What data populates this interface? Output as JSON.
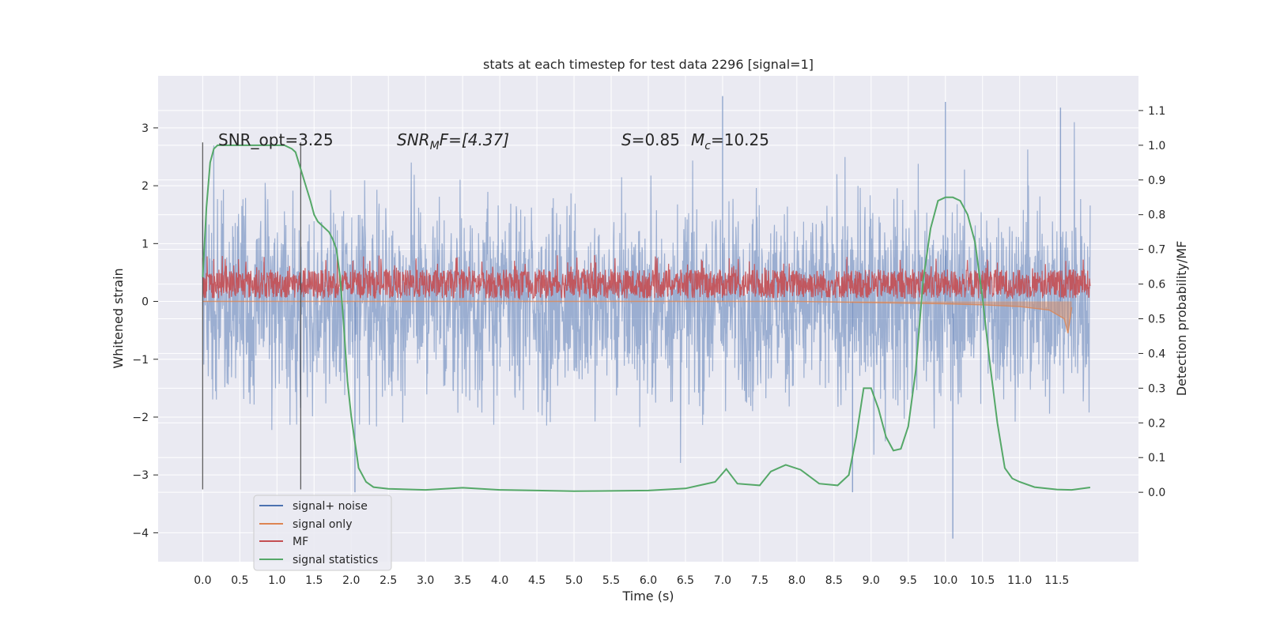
{
  "chart_data": {
    "type": "line",
    "title": "stats at each timestep for test data 2296 [signal=1]",
    "xlabel": "Time (s)",
    "ylabel": "Whitened strain",
    "y2label": "Detection probability/MF",
    "xlim": [
      -0.6,
      12.6
    ],
    "ylim": [
      -4.5,
      3.9
    ],
    "y2lim": [
      -0.2,
      1.2
    ],
    "xticks": [
      0.0,
      0.5,
      1.0,
      1.5,
      2.0,
      2.5,
      3.0,
      3.5,
      4.0,
      4.5,
      5.0,
      5.5,
      6.0,
      6.5,
      7.0,
      7.5,
      8.0,
      8.5,
      9.0,
      9.5,
      10.0,
      10.5,
      11.0,
      11.5
    ],
    "xtick_labels": [
      "0.0",
      "0.5",
      "1.0",
      "1.5",
      "2.0",
      "2.5",
      "3.0",
      "3.5",
      "4.0",
      "4.5",
      "5.0",
      "5.5",
      "6.0",
      "6.5",
      "7.0",
      "7.5",
      "8.0",
      "8.5",
      "9.0",
      "9.5",
      "10.0",
      "10.5",
      "11.0",
      "11.5"
    ],
    "yticks": [
      -4,
      -3,
      -2,
      -1,
      0,
      1,
      2,
      3
    ],
    "ytick_labels": [
      "−4",
      "−3",
      "−2",
      "−1",
      "0",
      "1",
      "2",
      "3"
    ],
    "y2ticks": [
      0.0,
      0.1,
      0.2,
      0.3,
      0.4,
      0.5,
      0.6,
      0.7,
      0.8,
      0.9,
      1.0,
      1.1
    ],
    "y2tick_labels": [
      "0.0",
      "0.1",
      "0.2",
      "0.3",
      "0.4",
      "0.5",
      "0.6",
      "0.7",
      "0.8",
      "0.9",
      "1.0",
      "1.1"
    ],
    "grid": true,
    "legend_placement": "lower-left",
    "vlines": [
      0.0,
      1.32
    ],
    "annotations": {
      "snr_opt": "SNR_opt=3.25",
      "snr_mf_name": "SNR",
      "snr_mf_sub": "M",
      "snr_mf_value": "F=[4.37]",
      "s_name": "S",
      "s_value": "=0.85",
      "mc_name": "M",
      "mc_sub": "c",
      "mc_value": "=10.25"
    },
    "series": [
      {
        "name": "signal+ noise",
        "color": "#4c72b0",
        "axis": "left",
        "description_kind": "noise band",
        "envelope_typical": [
          -1.6,
          1.6
        ],
        "extreme_spikes": [
          [
            10.1,
            -4.1
          ],
          [
            7.0,
            3.55
          ],
          [
            11.55,
            3.35
          ],
          [
            10.0,
            3.45
          ],
          [
            8.75,
            -3.3
          ],
          [
            2.05,
            -3.3
          ]
        ]
      },
      {
        "name": "signal only",
        "color": "#dd8452",
        "axis": "left",
        "x": [
          0.0,
          8.0,
          9.0,
          10.0,
          10.5,
          11.0,
          11.4,
          11.6,
          11.65,
          11.7
        ],
        "y": [
          0.0,
          0.0,
          -0.02,
          -0.04,
          -0.06,
          -0.09,
          -0.15,
          -0.3,
          -0.55,
          -0.1
        ]
      },
      {
        "name": "MF",
        "color": "#c44e52",
        "axis": "left",
        "description_kind": "band",
        "band": [
          0.05,
          0.55
        ],
        "peak": 0.8
      },
      {
        "name": "signal statistics",
        "color": "#55a868",
        "axis": "right",
        "x": [
          0.0,
          0.05,
          0.1,
          0.15,
          0.2,
          0.3,
          0.5,
          0.8,
          1.0,
          1.1,
          1.2,
          1.25,
          1.35,
          1.45,
          1.5,
          1.55,
          1.6,
          1.7,
          1.75,
          1.8,
          1.85,
          1.9,
          1.95,
          2.0,
          2.1,
          2.2,
          2.3,
          2.5,
          3.0,
          3.5,
          4.0,
          4.5,
          5.0,
          5.5,
          6.0,
          6.5,
          6.9,
          7.05,
          7.2,
          7.5,
          7.65,
          7.85,
          8.05,
          8.3,
          8.55,
          8.7,
          8.8,
          8.9,
          9.0,
          9.1,
          9.2,
          9.3,
          9.4,
          9.5,
          9.6,
          9.7,
          9.8,
          9.9,
          10.0,
          10.1,
          10.2,
          10.3,
          10.4,
          10.5,
          10.6,
          10.7,
          10.8,
          10.9,
          11.0,
          11.2,
          11.5,
          11.7,
          11.95
        ],
        "y": [
          0.62,
          0.82,
          0.95,
          0.99,
          1.0,
          1.0,
          1.0,
          1.0,
          1.0,
          1.0,
          0.99,
          0.98,
          0.91,
          0.84,
          0.8,
          0.78,
          0.77,
          0.75,
          0.73,
          0.7,
          0.62,
          0.48,
          0.32,
          0.22,
          0.07,
          0.03,
          0.015,
          0.01,
          0.007,
          0.013,
          0.007,
          0.005,
          0.003,
          0.004,
          0.005,
          0.011,
          0.03,
          0.067,
          0.025,
          0.02,
          0.06,
          0.079,
          0.065,
          0.025,
          0.02,
          0.05,
          0.16,
          0.3,
          0.3,
          0.24,
          0.16,
          0.12,
          0.125,
          0.19,
          0.35,
          0.61,
          0.76,
          0.84,
          0.85,
          0.85,
          0.84,
          0.8,
          0.72,
          0.56,
          0.37,
          0.2,
          0.07,
          0.04,
          0.03,
          0.015,
          0.008,
          0.007,
          0.014
        ]
      }
    ]
  }
}
